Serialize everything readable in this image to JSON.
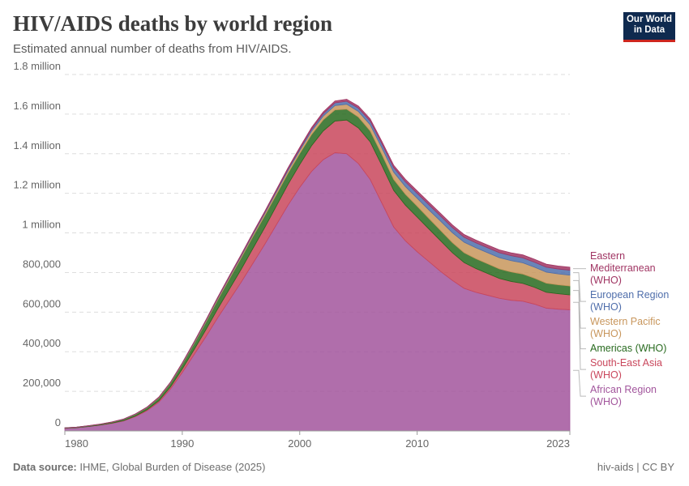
{
  "title": "HIV/AIDS deaths by world region",
  "subtitle": "Estimated annual number of deaths from HIV/AIDS.",
  "logo": "Our World in Data",
  "source_label": "Data source:",
  "source": "IHME, Global Burden of Disease (2025)",
  "footer_right": "hiv-aids | CC BY",
  "chart_data": {
    "type": "stacked-area",
    "x": [
      1980,
      1981,
      1982,
      1983,
      1984,
      1985,
      1986,
      1987,
      1988,
      1989,
      1990,
      1991,
      1992,
      1993,
      1994,
      1995,
      1996,
      1997,
      1998,
      1999,
      2000,
      2001,
      2002,
      2003,
      2004,
      2005,
      2006,
      2007,
      2008,
      2009,
      2010,
      2011,
      2012,
      2013,
      2014,
      2015,
      2016,
      2017,
      2018,
      2019,
      2020,
      2021,
      2022,
      2023
    ],
    "xlim": [
      1980,
      2023
    ],
    "xticks": [
      1980,
      1990,
      2000,
      2010,
      2023
    ],
    "ylim": [
      0,
      1800000
    ],
    "yticks": [
      0,
      {
        "value": 200000,
        "label": "200,000"
      },
      {
        "value": 400000,
        "label": "400,000"
      },
      {
        "value": 600000,
        "label": "600,000"
      },
      {
        "value": 800000,
        "label": "800,000"
      },
      {
        "value": 1000000,
        "label": "1 million"
      },
      {
        "value": 1200000,
        "label": "1.2 million"
      },
      {
        "value": 1400000,
        "label": "1.4 million"
      },
      {
        "value": 1600000,
        "label": "1.6 million"
      },
      {
        "value": 1800000,
        "label": "1.8 million"
      }
    ],
    "grid": true,
    "series": [
      {
        "name": "African Region (WHO)",
        "color": "#a2559c",
        "values": [
          13000,
          16000,
          22000,
          29000,
          38000,
          50000,
          72000,
          102000,
          145000,
          212000,
          295000,
          385000,
          475000,
          570000,
          660000,
          750000,
          845000,
          940000,
          1040000,
          1140000,
          1230000,
          1310000,
          1370000,
          1405000,
          1400000,
          1350000,
          1270000,
          1150000,
          1030000,
          960000,
          905000,
          855000,
          805000,
          760000,
          720000,
          700000,
          685000,
          670000,
          660000,
          655000,
          640000,
          620000,
          615000,
          612000
        ]
      },
      {
        "name": "South-East Asia (WHO)",
        "color": "#c9475c",
        "values": [
          500,
          600,
          800,
          1000,
          1500,
          2000,
          3000,
          5000,
          7000,
          11000,
          18000,
          25000,
          35000,
          45000,
          55000,
          65000,
          75000,
          85000,
          95000,
          105000,
          115000,
          130000,
          145000,
          160000,
          170000,
          180000,
          190000,
          190000,
          185000,
          180000,
          175000,
          165000,
          155000,
          140000,
          130000,
          120000,
          110000,
          100000,
          95000,
          90000,
          85000,
          80000,
          78000,
          75000
        ]
      },
      {
        "name": "Americas (WHO)",
        "color": "#286a1f",
        "values": [
          1500,
          2000,
          2500,
          3000,
          4000,
          6000,
          8000,
          10000,
          14000,
          18000,
          24000,
          30000,
          38000,
          45000,
          52000,
          57000,
          60000,
          60000,
          58000,
          56000,
          56000,
          56000,
          56000,
          56000,
          55000,
          55000,
          55000,
          55000,
          55000,
          55000,
          55000,
          53000,
          52000,
          51000,
          50000,
          50000,
          49000,
          48000,
          48000,
          47000,
          46000,
          46000,
          45000,
          45000
        ]
      },
      {
        "name": "Western Pacific (WHO)",
        "color": "#c8965c",
        "values": [
          300,
          400,
          500,
          600,
          800,
          1000,
          1300,
          1700,
          2200,
          2800,
          3500,
          4500,
          5500,
          6500,
          7500,
          8500,
          9500,
          10500,
          12000,
          13500,
          15000,
          17000,
          19000,
          22000,
          25000,
          28000,
          31000,
          34000,
          37000,
          39000,
          40000,
          43000,
          47000,
          50000,
          53000,
          55000,
          56000,
          57000,
          57000,
          57000,
          56000,
          56000,
          55000,
          55000
        ]
      },
      {
        "name": "European Region (WHO)",
        "color": "#4f6eab",
        "values": [
          200,
          200,
          300,
          400,
          500,
          600,
          800,
          1000,
          1300,
          1600,
          2000,
          2500,
          3000,
          3500,
          4000,
          4500,
          5000,
          5500,
          6500,
          7500,
          8000,
          10000,
          12000,
          14000,
          15000,
          17000,
          19000,
          21000,
          23000,
          24000,
          25000,
          26000,
          26000,
          26000,
          25000,
          25000,
          25000,
          25000,
          25000,
          25000,
          25000,
          25000,
          25000,
          25000
        ]
      },
      {
        "name": "Eastern Mediterranean (WHO)",
        "color": "#a03563",
        "values": [
          300,
          300,
          400,
          500,
          600,
          700,
          900,
          1100,
          1400,
          1700,
          2000,
          2500,
          3000,
          3500,
          4000,
          4500,
          5000,
          5500,
          6000,
          7000,
          8000,
          8500,
          9000,
          9500,
          10000,
          10500,
          11000,
          11500,
          12000,
          12500,
          13000,
          13000,
          13500,
          13500,
          14000,
          14000,
          14000,
          14500,
          14500,
          15000,
          15000,
          15000,
          15000,
          15000
        ]
      }
    ]
  }
}
